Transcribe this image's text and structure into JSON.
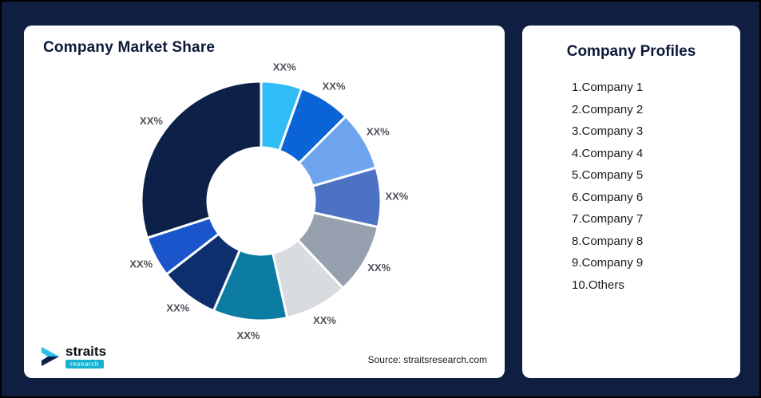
{
  "chart_card": {
    "title": "Company Market Share",
    "source": "Source: straitsresearch.com",
    "logo": {
      "brand": "straits",
      "sub_brand": "research"
    }
  },
  "profiles_card": {
    "title": "Company Profiles",
    "items": [
      "1.Company 1",
      "2.Company 2",
      "3.Company 3",
      "4.Company 4",
      "5.Company 5",
      "6.Company 6",
      "7.Company 7",
      "8.Company 8",
      "9.Company 9",
      "10.Others"
    ]
  },
  "chart_data": {
    "type": "pie",
    "subtype": "donut",
    "title": "Company Market Share",
    "start_angle_deg": 0,
    "direction": "clockwise",
    "inner_radius_ratio": 0.45,
    "legend": "none",
    "segments": [
      {
        "label": "XX%",
        "value": 5.5,
        "color": "#2fbcf7"
      },
      {
        "label": "XX%",
        "value": 7,
        "color": "#0b63d8"
      },
      {
        "label": "XX%",
        "value": 8,
        "color": "#6fa4ee"
      },
      {
        "label": "XX%",
        "value": 8,
        "color": "#4d72c4"
      },
      {
        "label": "XX%",
        "value": 9.5,
        "color": "#97a0ae"
      },
      {
        "label": "XX%",
        "value": 8.5,
        "color": "#d8dbdf"
      },
      {
        "label": "XX%",
        "value": 10,
        "color": "#0c7ca3"
      },
      {
        "label": "XX%",
        "value": 8,
        "color": "#0e2f6d"
      },
      {
        "label": "XX%",
        "value": 5.5,
        "color": "#1b55cc"
      },
      {
        "label": "XX%",
        "value": 30,
        "color": "#0d2148"
      }
    ],
    "colors_note": {
      "background": "#101e41",
      "card": "#ffffff",
      "title_text": "#0c1a38",
      "label_text": "#4c5158",
      "logo_accent": "#17b1d2"
    }
  }
}
